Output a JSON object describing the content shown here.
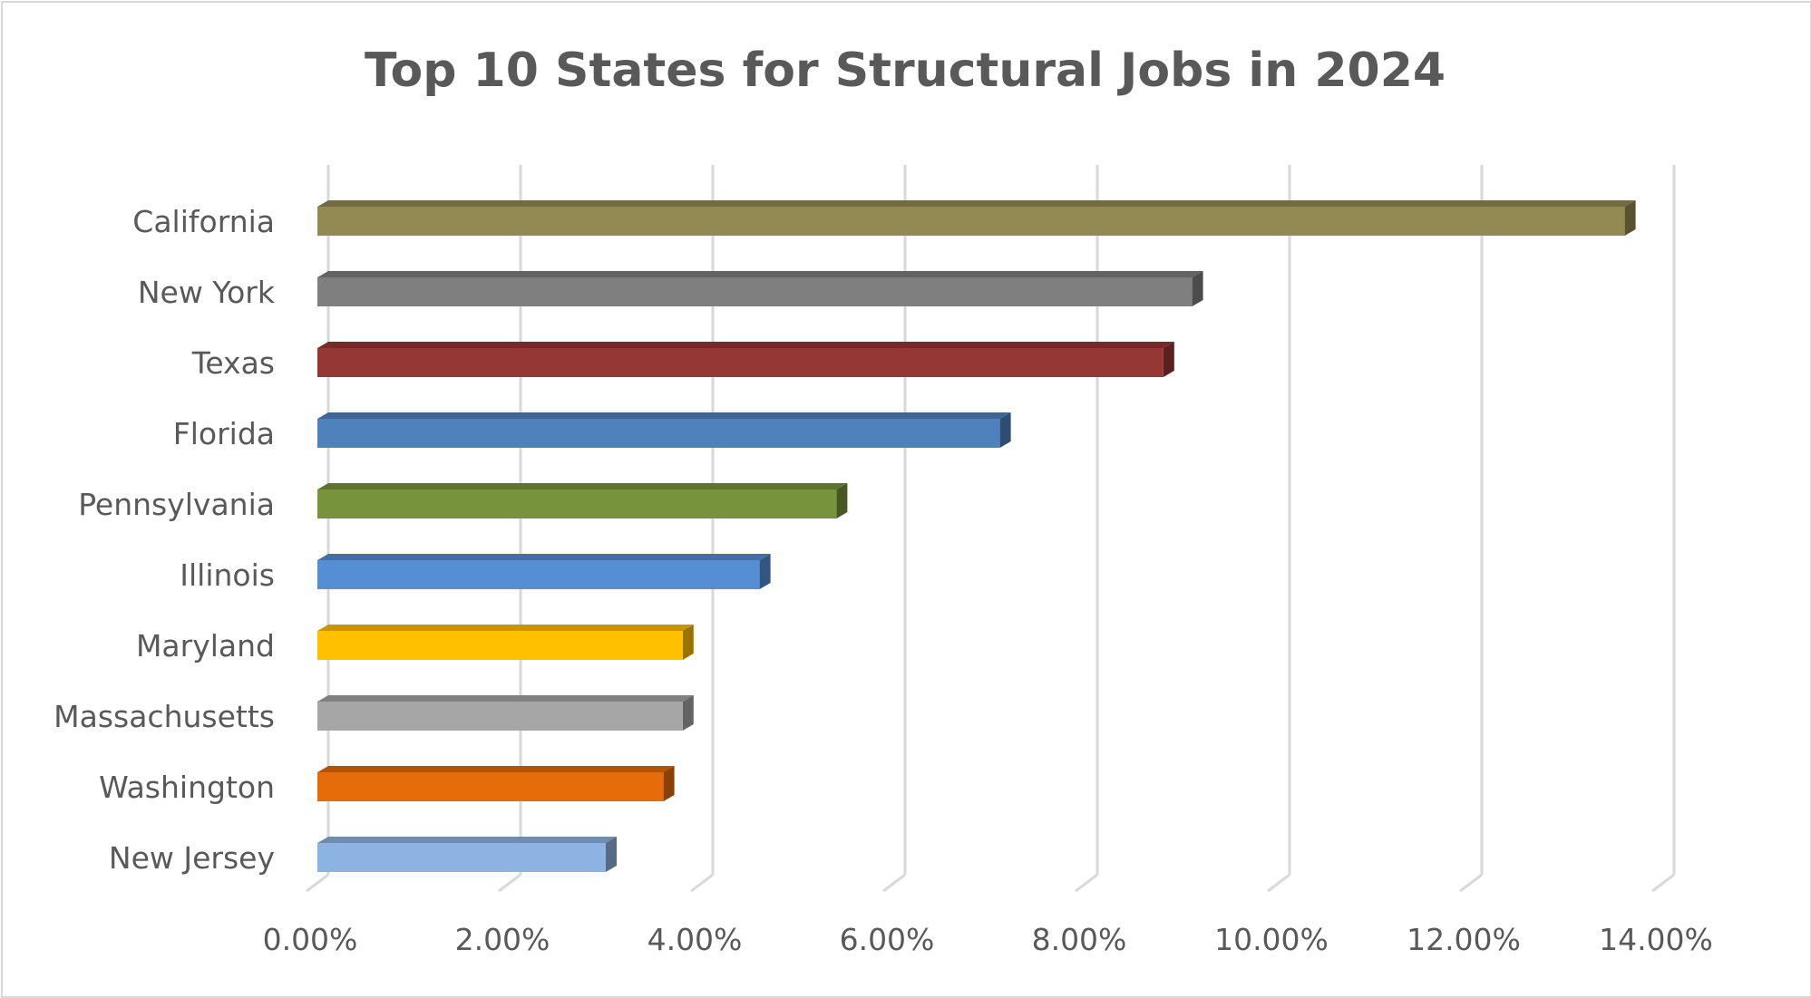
{
  "chart_data": {
    "type": "bar",
    "orientation": "horizontal",
    "title": "Top 10 States for Structural Jobs in 2024",
    "xlabel": "",
    "ylabel": "",
    "categories": [
      "California",
      "New York",
      "Texas",
      "Florida",
      "Pennsylvania",
      "Illinois",
      "Maryland",
      "Massachusetts",
      "Washington",
      "New Jersey"
    ],
    "values": [
      13.6,
      9.1,
      8.8,
      7.1,
      5.4,
      4.6,
      3.8,
      3.8,
      3.6,
      3.0
    ],
    "value_unit": "%",
    "xlim": [
      0,
      14
    ],
    "x_ticks": [
      0,
      2,
      4,
      6,
      8,
      10,
      12,
      14
    ],
    "x_tick_labels": [
      "0.00%",
      "2.00%",
      "4.00%",
      "6.00%",
      "8.00%",
      "10.00%",
      "12.00%",
      "14.00%"
    ],
    "grid": "vertical",
    "legend": "none",
    "style": "3d-bar",
    "colors": [
      "#938953",
      "#7f7f7f",
      "#953735",
      "#4f81bd",
      "#77933c",
      "#558ed5",
      "#ffc000",
      "#a6a6a6",
      "#e46c0a",
      "#8db3e2"
    ]
  }
}
